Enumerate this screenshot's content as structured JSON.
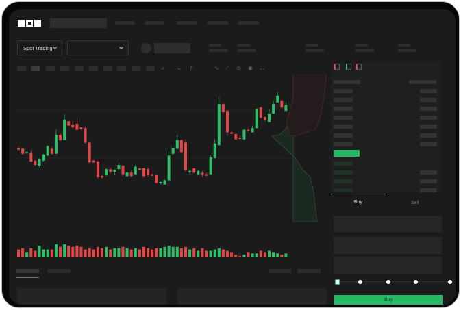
{
  "header": {
    "logo": "OKX"
  },
  "selectors": {
    "market_type": "Spot Trading",
    "pair": ""
  },
  "trade": {
    "tabs": [
      "Buy",
      "Sell"
    ],
    "active_tab": "Buy",
    "slider_percent": 0,
    "slider_stops": [
      0,
      25,
      50,
      75,
      100
    ]
  },
  "colors": {
    "up": "#2fbf6a",
    "down": "#e04848",
    "accent": "#25b865",
    "background": "#1b1b1b"
  },
  "chart_data": {
    "type": "candlestick",
    "candles": [
      [
        37,
        35,
        38,
        34
      ],
      [
        36,
        30,
        37,
        29
      ],
      [
        31,
        32,
        33,
        31
      ],
      [
        31,
        21,
        34,
        20
      ],
      [
        22,
        17,
        23,
        16
      ],
      [
        16,
        24,
        25,
        14
      ],
      [
        22,
        29,
        30,
        21
      ],
      [
        28,
        39,
        40,
        27
      ],
      [
        36,
        30,
        38,
        29
      ],
      [
        30,
        52,
        58,
        30
      ],
      [
        52,
        46,
        54,
        45
      ],
      [
        46,
        70,
        76,
        46
      ],
      [
        68,
        63,
        68,
        62
      ],
      [
        64,
        61,
        68,
        59
      ],
      [
        65,
        58,
        72,
        56
      ],
      [
        61,
        59,
        61,
        58
      ],
      [
        60,
        43,
        62,
        42
      ],
      [
        43,
        20,
        44,
        19
      ],
      [
        22,
        20,
        23,
        19
      ],
      [
        21,
        3,
        22,
        1
      ],
      [
        4,
        3,
        5,
        1
      ],
      [
        5,
        12,
        13,
        4
      ],
      [
        12,
        9,
        14,
        7
      ],
      [
        9,
        11,
        12,
        5
      ],
      [
        12,
        17,
        19,
        11
      ],
      [
        16,
        6,
        17,
        4
      ],
      [
        4,
        8,
        9,
        3
      ],
      [
        8,
        4,
        10,
        3
      ],
      [
        6,
        15,
        17,
        6
      ],
      [
        13,
        12,
        14,
        11
      ],
      [
        13,
        4,
        14,
        2
      ],
      [
        12,
        5,
        14,
        3
      ],
      [
        6,
        5,
        7,
        5
      ],
      [
        5,
        -4,
        6,
        -5
      ],
      [
        -4,
        -3,
        -2,
        -6
      ],
      [
        -6,
        -1,
        0,
        -6
      ],
      [
        -1,
        28,
        33,
        -1
      ],
      [
        30,
        37,
        40,
        29
      ],
      [
        36,
        46,
        52,
        35
      ],
      [
        46,
        32,
        47,
        31
      ],
      [
        43,
        11,
        47,
        9
      ],
      [
        9,
        10,
        12,
        6
      ],
      [
        13,
        8,
        13,
        7
      ],
      [
        6,
        10,
        11,
        5
      ],
      [
        8,
        6,
        10,
        3
      ],
      [
        6,
        5,
        8,
        5
      ],
      [
        6,
        26,
        28,
        6
      ],
      [
        25,
        42,
        47,
        24
      ],
      [
        40,
        88,
        97,
        39
      ],
      [
        88,
        79,
        89,
        77
      ],
      [
        80,
        55,
        81,
        51
      ],
      [
        55,
        54,
        56,
        53
      ],
      [
        53,
        47,
        54,
        46
      ],
      [
        49,
        48,
        51,
        47
      ],
      [
        47,
        58,
        59,
        46
      ],
      [
        58,
        57,
        60,
        56
      ],
      [
        55,
        60,
        63,
        55
      ],
      [
        60,
        82,
        83,
        60
      ],
      [
        84,
        72,
        85,
        71
      ],
      [
        73,
        69,
        74,
        68
      ],
      [
        67,
        77,
        82,
        67
      ],
      [
        77,
        88,
        92,
        77
      ],
      [
        90,
        98,
        102,
        90
      ],
      [
        92,
        84,
        93,
        82
      ],
      [
        80,
        87,
        90,
        80
      ]
    ],
    "volumes": [
      6,
      7,
      4,
      7,
      5,
      9,
      6,
      6,
      6,
      10,
      8,
      10,
      9,
      8,
      9,
      8,
      6,
      7,
      6,
      8,
      7,
      8,
      6,
      7,
      7,
      8,
      7,
      6,
      7,
      6,
      8,
      7,
      6,
      7,
      7,
      8,
      9,
      8,
      8,
      7,
      8,
      6,
      7,
      5,
      7,
      5,
      5,
      6,
      7,
      6,
      5,
      4,
      2,
      1,
      2,
      4,
      3,
      3,
      5,
      4,
      5,
      4,
      3,
      2,
      3
    ],
    "grid": true
  }
}
